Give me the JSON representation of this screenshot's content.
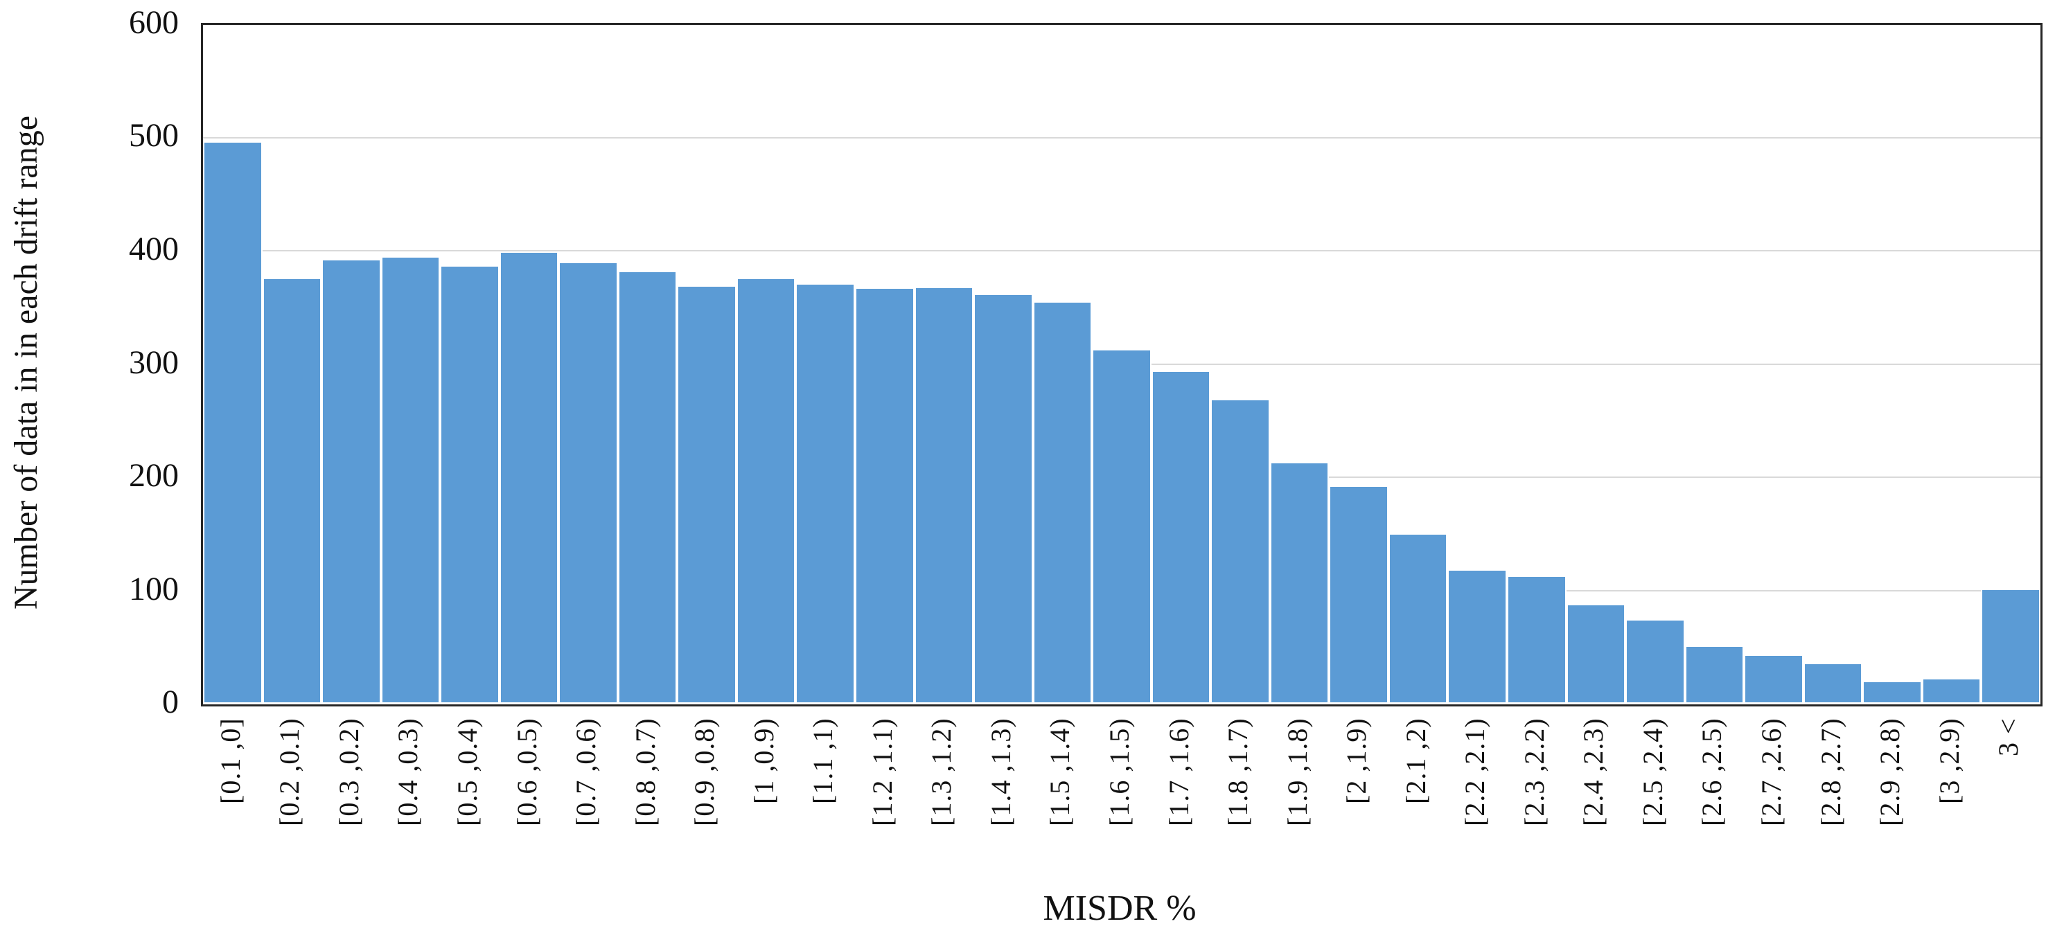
{
  "chart_data": {
    "type": "bar",
    "title": "",
    "xlabel": "MISDR %",
    "ylabel": "Number of data in in each drift range",
    "categories": [
      "[0.1 ,0]",
      "[0.2 ,0.1)",
      "[0.3 ,0.2)",
      "[0.4 ,0.3)",
      "[0.5 ,0.4)",
      "[0.6 ,0.5)",
      "[0.7 ,0.6)",
      "[0.8 ,0.7)",
      "[0.9 ,0.8)",
      "[1 ,0.9)",
      "[1.1 ,1)",
      "[1.2 ,1.1)",
      "[1.3 ,1.2)",
      "[1.4 ,1.3)",
      "[1.5 ,1.4)",
      "[1.6 ,1.5)",
      "[1.7 ,1.6)",
      "[1.8 ,1.7)",
      "[1.9 ,1.8)",
      "[2 ,1.9)",
      "[2.1 ,2)",
      "[2.2 ,2.1)",
      "[2.3 ,2.2)",
      "[2.4 ,2.3)",
      "[2.5 ,2.4)",
      "[2.6 ,2.5)",
      "[2.7 ,2.6)",
      "[2.8 ,2.7)",
      "[2.9 ,2.8)",
      "[3 ,2.9)",
      "3 <"
    ],
    "values": [
      497,
      377,
      393,
      396,
      388,
      400,
      391,
      383,
      370,
      377,
      372,
      368,
      369,
      363,
      356,
      314,
      295,
      270,
      214,
      193,
      151,
      119,
      114,
      89,
      75,
      52,
      44,
      37,
      21,
      23,
      102
    ],
    "ylim": [
      0,
      600
    ],
    "yticks": [
      0,
      100,
      200,
      300,
      400,
      500,
      600
    ],
    "grid": "horizontal",
    "legend": "none",
    "bar_color": "#5B9BD5",
    "gridline_color": "#D9D9D9",
    "axis_box_color": "#262626",
    "text_color": "#111111"
  }
}
